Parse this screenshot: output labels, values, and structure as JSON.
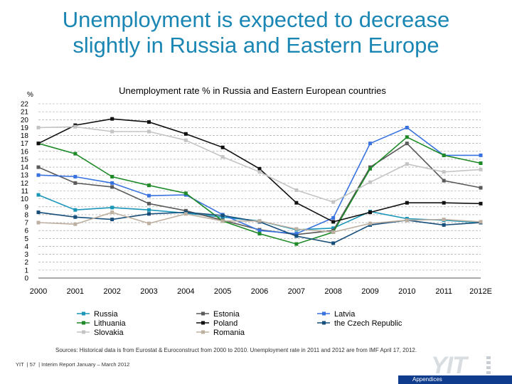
{
  "slide": {
    "title_line1": "Unemployment is expected to decrease",
    "title_line2": "slightly in Russia and Eastern Europe",
    "source": "Sources: Historical data is from Eurostat & Euroconstruct from 2000 to 2010. Unemployment rate in 2011 and 2012 are from IMF April 17, 2012.",
    "footer_company": "YIT",
    "footer_page": "57",
    "footer_report": "Interim Report January – March 2012",
    "logo_text": "YIT",
    "appendix_label": "Appendices",
    "title_color": "#1a86b4",
    "bar_color": "#0f3c8c"
  },
  "chart_data": {
    "type": "line",
    "title": "Unemployment rate % in Russia and Eastern European countries",
    "ylabel": "%",
    "xlabel": "",
    "ylim": [
      0,
      22
    ],
    "yticks": [
      "0",
      "1",
      "2",
      "3",
      "4",
      "5",
      "6",
      "7",
      "8",
      "9",
      "10",
      "11",
      "12",
      "13",
      "14",
      "15",
      "16",
      "17",
      "18",
      "19",
      "20",
      "21",
      "22"
    ],
    "grid": "horizontal",
    "legend_position": "bottom",
    "categories": [
      "2000",
      "2001",
      "2002",
      "2003",
      "2004",
      "2005",
      "2006",
      "2007",
      "2008",
      "2009",
      "2010",
      "2011",
      "2012E"
    ],
    "series": [
      {
        "name": "Russia",
        "color": "#1a96b8",
        "marker": "square",
        "values": [
          10.5,
          8.6,
          8.9,
          8.6,
          8.2,
          7.7,
          7.2,
          6.1,
          6.3,
          8.4,
          7.5,
          7.3,
          7.0
        ]
      },
      {
        "name": "Estonia",
        "color": "#5a5a5a",
        "marker": "square",
        "values": [
          14.0,
          12.0,
          11.5,
          9.4,
          8.5,
          7.3,
          6.1,
          5.5,
          6.0,
          14.0,
          17.0,
          12.3,
          11.4
        ]
      },
      {
        "name": "Latvia",
        "color": "#3872e0",
        "marker": "square",
        "values": [
          13.0,
          12.8,
          12.0,
          10.4,
          10.5,
          8.0,
          6.0,
          5.6,
          7.6,
          17.0,
          19.0,
          15.5,
          15.5
        ]
      },
      {
        "name": "Lithuania",
        "color": "#1e8a28",
        "marker": "square",
        "values": [
          17.0,
          15.7,
          12.8,
          11.7,
          10.7,
          7.2,
          5.6,
          4.3,
          5.8,
          13.8,
          17.8,
          15.5,
          14.5
        ]
      },
      {
        "name": "Poland",
        "color": "#111111",
        "marker": "square",
        "values": [
          17.0,
          19.3,
          20.1,
          19.7,
          18.2,
          16.5,
          13.8,
          9.5,
          7.1,
          8.3,
          9.5,
          9.5,
          9.4
        ]
      },
      {
        "name": "the Czech Republic",
        "color": "#174e7a",
        "marker": "square",
        "values": [
          8.3,
          7.7,
          7.4,
          8.1,
          8.3,
          7.9,
          7.1,
          5.3,
          4.4,
          6.7,
          7.3,
          6.7,
          7.0
        ]
      },
      {
        "name": "Slovakia",
        "color": "#c4c4c4",
        "marker": "square",
        "values": [
          19.0,
          19.1,
          18.5,
          18.5,
          17.4,
          15.3,
          13.4,
          11.1,
          9.6,
          12.1,
          14.4,
          13.4,
          13.7
        ]
      },
      {
        "name": "Romania",
        "color": "#bdb0a0",
        "marker": "square",
        "values": [
          7.0,
          6.8,
          8.3,
          6.9,
          8.1,
          7.2,
          7.2,
          6.2,
          5.8,
          6.9,
          7.3,
          7.4,
          7.1
        ]
      }
    ]
  }
}
